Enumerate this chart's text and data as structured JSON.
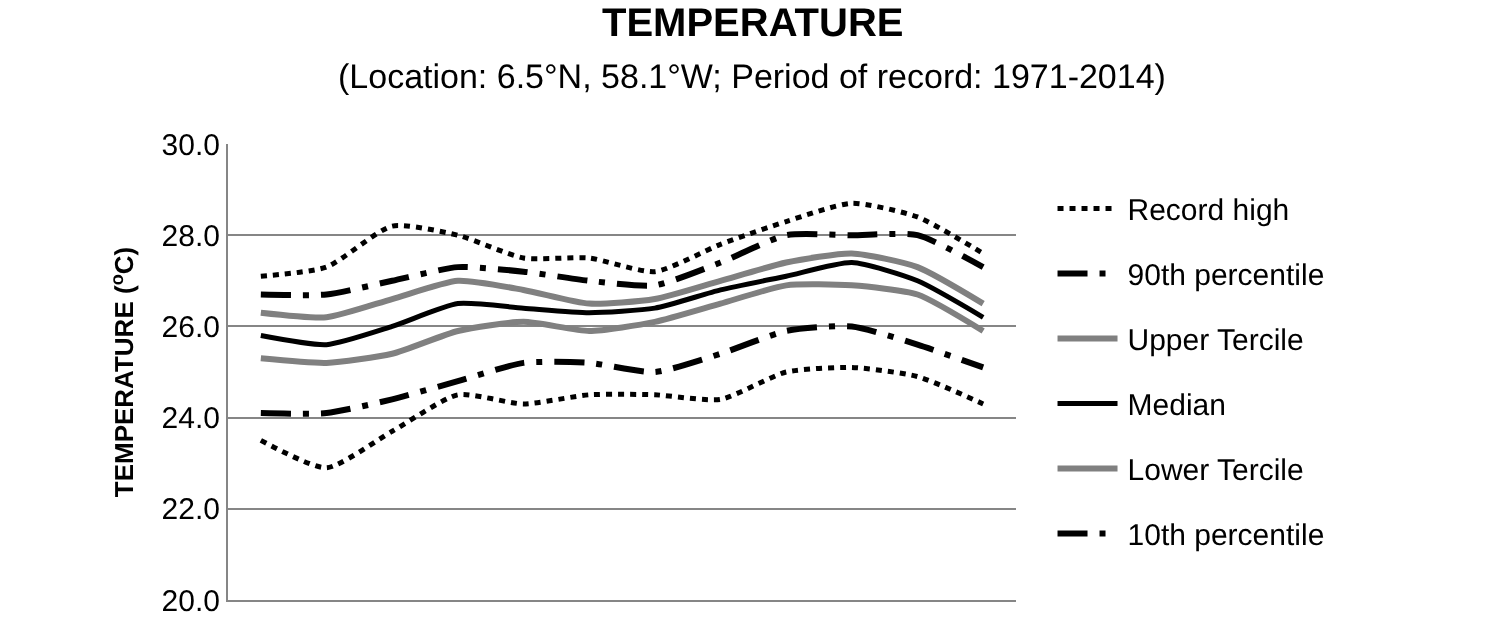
{
  "chart_data": {
    "type": "line",
    "title": "TEMPERATURE",
    "subtitle": "(Location: 6.5°N, 58.1°W; Period of record: 1971-2014)",
    "ylabel": "TEMPERATURE ($^{o}$C)",
    "categories": [
      null,
      null,
      null,
      null,
      null,
      null,
      null,
      null,
      null,
      null,
      null,
      null
    ],
    "series": [
      {
        "name": "Record high",
        "color": "#000000",
        "line_style": "dotted",
        "values": [
          27.1,
          27.3,
          28.2,
          28.0,
          27.5,
          27.5,
          27.2,
          27.8,
          28.3,
          28.7,
          28.4,
          27.6
        ]
      },
      {
        "name": "90th percentile",
        "color": "#000000",
        "line_style": "dashdot",
        "values": [
          26.7,
          26.7,
          27.0,
          27.3,
          27.2,
          27.0,
          26.9,
          27.4,
          28.0,
          28.0,
          28.0,
          27.3
        ]
      },
      {
        "name": "Upper Tercile",
        "color": "#808080",
        "line_style": "solid",
        "values": [
          26.3,
          26.2,
          26.6,
          27.0,
          26.8,
          26.5,
          26.6,
          27.0,
          27.4,
          27.6,
          27.3,
          26.5
        ]
      },
      {
        "name": "Median",
        "color": "#000000",
        "line_style": "solid",
        "values": [
          25.8,
          25.6,
          26.0,
          26.5,
          26.4,
          26.3,
          26.4,
          26.8,
          27.1,
          27.4,
          27.0,
          26.2
        ]
      },
      {
        "name": "Lower Tercile",
        "color": "#808080",
        "line_style": "solid",
        "values": [
          25.3,
          25.2,
          25.4,
          25.9,
          26.1,
          25.9,
          26.1,
          26.5,
          26.9,
          26.9,
          26.7,
          25.9
        ]
      },
      {
        "name": "10th percentile",
        "color": "#000000",
        "line_style": "dashdot",
        "values": [
          24.1,
          24.1,
          24.4,
          24.8,
          25.2,
          25.2,
          25.0,
          25.4,
          25.9,
          26.0,
          25.6,
          25.1
        ]
      },
      {
        "color": "#000000",
        "line_style": "dotted",
        "values": [
          23.5,
          22.9,
          23.7,
          24.5,
          24.3,
          24.5,
          24.5,
          24.4,
          25.0,
          25.1,
          24.9,
          24.3
        ]
      }
    ],
    "ylim": [
      20,
      30
    ],
    "yticks": [
      {
        "value": 20,
        "label": "20.0"
      },
      {
        "value": 22,
        "label": "22.0"
      },
      {
        "value": 24,
        "label": "24.0"
      },
      {
        "value": 26,
        "label": "26.0"
      },
      {
        "value": 28,
        "label": "28.0"
      },
      {
        "value": 30,
        "label": "30.0"
      }
    ],
    "grid": "y",
    "legend": "right",
    "tick_labels": "y",
    "marker": "none"
  }
}
